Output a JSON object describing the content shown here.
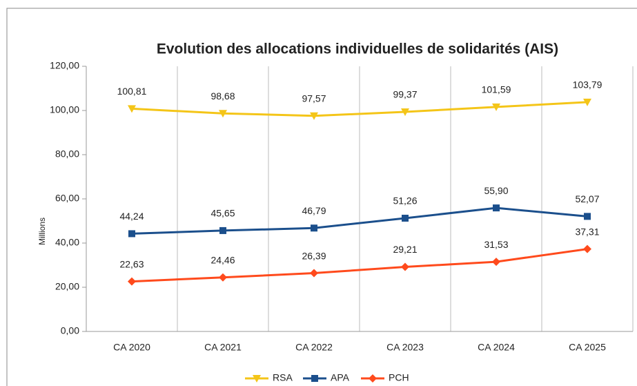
{
  "chart_data": {
    "type": "line",
    "title": "Evolution des allocations individuelles de solidarités (AIS)",
    "y_label": "Millions",
    "categories": [
      "CA 2020",
      "CA 2021",
      "CA 2022",
      "CA 2023",
      "CA 2024",
      "CA 2025"
    ],
    "series": [
      {
        "name": "RSA",
        "color": "#f4c518",
        "marker": "triangle",
        "values": [
          100.81,
          98.68,
          97.57,
          99.37,
          101.59,
          103.79
        ],
        "value_labels": [
          "100,81",
          "98,68",
          "97,57",
          "99,37",
          "101,59",
          "103,79"
        ]
      },
      {
        "name": "APA",
        "color": "#1b4f8c",
        "marker": "square",
        "values": [
          44.24,
          45.65,
          46.79,
          51.26,
          55.9,
          52.07
        ],
        "value_labels": [
          "44,24",
          "45,65",
          "46,79",
          "51,26",
          "55,90",
          "52,07"
        ]
      },
      {
        "name": "PCH",
        "color": "#ff4a1c",
        "marker": "diamond",
        "values": [
          22.63,
          24.46,
          26.39,
          29.21,
          31.53,
          37.31
        ],
        "value_labels": [
          "22,63",
          "24,46",
          "26,39",
          "29,21",
          "31,53",
          "37,31"
        ]
      }
    ],
    "ylim": [
      0,
      120
    ],
    "yticks": [
      {
        "value": 0,
        "label": "0,00"
      },
      {
        "value": 20,
        "label": "20,00"
      },
      {
        "value": 40,
        "label": "40,00"
      },
      {
        "value": 60,
        "label": "60,00"
      },
      {
        "value": 80,
        "label": "80,00"
      },
      {
        "value": 100,
        "label": "100,00"
      },
      {
        "value": 120,
        "label": "120,00"
      }
    ],
    "legend": "bottom"
  }
}
